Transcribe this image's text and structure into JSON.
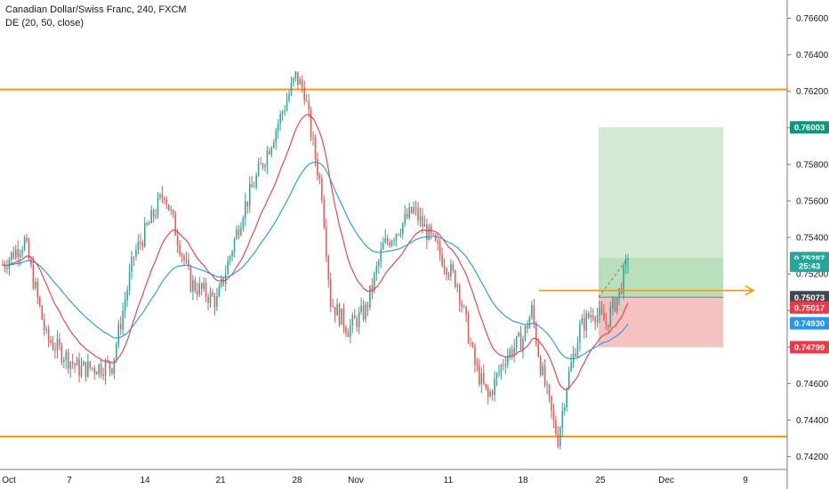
{
  "header": {
    "symbol_line": "Canadian Dollar/Swiss Franc, 240, FXCM",
    "indicator_line": "DE (20, 50, close)"
  },
  "colors": {
    "up_candle": "#26a69a",
    "down_candle": "#ef5350",
    "ema_fast": "#f23645",
    "ema_slow": "#2196f3",
    "level_line": "#ff9800",
    "profit_zone": "#a5d6a7",
    "loss_zone": "#ef9a9a",
    "target_tag": "#089981",
    "stop_tag": "#f23645",
    "axis_text": "#131722"
  },
  "chart_data": {
    "type": "candlestick",
    "title": "Canadian Dollar/Swiss Franc, 240, FXCM",
    "interval": "240",
    "source": "FXCM",
    "indicator": "DE (20, 50, close)",
    "x_ticks": [
      "Oct",
      "7",
      "14",
      "21",
      "28",
      "Nov",
      "11",
      "18",
      "25",
      "Dec",
      "9"
    ],
    "y_ticks": [
      "0.76600",
      "0.76400",
      "0.76200",
      "0.76000",
      "0.75800",
      "0.75600",
      "0.75400",
      "0.75200",
      "0.75000",
      "0.74800",
      "0.74600",
      "0.74400",
      "0.74200"
    ],
    "y_range": [
      0.7413,
      0.767
    ],
    "grid": false,
    "price_tags": [
      {
        "label": "0.76003",
        "value": 0.76003,
        "role": "target"
      },
      {
        "label": "0.75287",
        "value": 0.75287,
        "role": "current"
      },
      {
        "label": "25:43",
        "value": 0.75245,
        "role": "countdown"
      },
      {
        "label": "0.75073",
        "value": 0.75073,
        "role": "entry"
      },
      {
        "label": "0.75017",
        "value": 0.75017,
        "role": "ema-fast"
      },
      {
        "label": "0.74930",
        "value": 0.7493,
        "role": "ema-slow"
      },
      {
        "label": "0.74799",
        "value": 0.74799,
        "role": "stop"
      }
    ],
    "horizontal_levels": [
      0.7621,
      0.7431
    ],
    "breakout_level": 0.7511,
    "position": {
      "target": 0.76003,
      "entry": 0.75073,
      "stop": 0.74799,
      "current": 0.75287
    },
    "price_path_anchors": [
      {
        "t": 0,
        "p": 0.7525
      },
      {
        "t": 10,
        "p": 0.7538
      },
      {
        "t": 20,
        "p": 0.7485
      },
      {
        "t": 35,
        "p": 0.7468
      },
      {
        "t": 50,
        "p": 0.747
      },
      {
        "t": 60,
        "p": 0.753
      },
      {
        "t": 74,
        "p": 0.7565
      },
      {
        "t": 86,
        "p": 0.7515
      },
      {
        "t": 98,
        "p": 0.7505
      },
      {
        "t": 110,
        "p": 0.7555
      },
      {
        "t": 122,
        "p": 0.759
      },
      {
        "t": 134,
        "p": 0.7628
      },
      {
        "t": 138,
        "p": 0.762
      },
      {
        "t": 142,
        "p": 0.759
      },
      {
        "t": 146,
        "p": 0.7565
      },
      {
        "t": 150,
        "p": 0.7505
      },
      {
        "t": 158,
        "p": 0.749
      },
      {
        "t": 166,
        "p": 0.75
      },
      {
        "t": 174,
        "p": 0.7535
      },
      {
        "t": 188,
        "p": 0.7555
      },
      {
        "t": 198,
        "p": 0.7535
      },
      {
        "t": 208,
        "p": 0.7515
      },
      {
        "t": 216,
        "p": 0.747
      },
      {
        "t": 222,
        "p": 0.7452
      },
      {
        "t": 230,
        "p": 0.7475
      },
      {
        "t": 238,
        "p": 0.7485
      },
      {
        "t": 242,
        "p": 0.75
      },
      {
        "t": 246,
        "p": 0.747
      },
      {
        "t": 252,
        "p": 0.7438
      },
      {
        "t": 254,
        "p": 0.743
      },
      {
        "t": 258,
        "p": 0.746
      },
      {
        "t": 264,
        "p": 0.749
      },
      {
        "t": 270,
        "p": 0.75
      },
      {
        "t": 276,
        "p": 0.7493
      },
      {
        "t": 282,
        "p": 0.751
      },
      {
        "t": 286,
        "p": 0.7528
      }
    ]
  }
}
